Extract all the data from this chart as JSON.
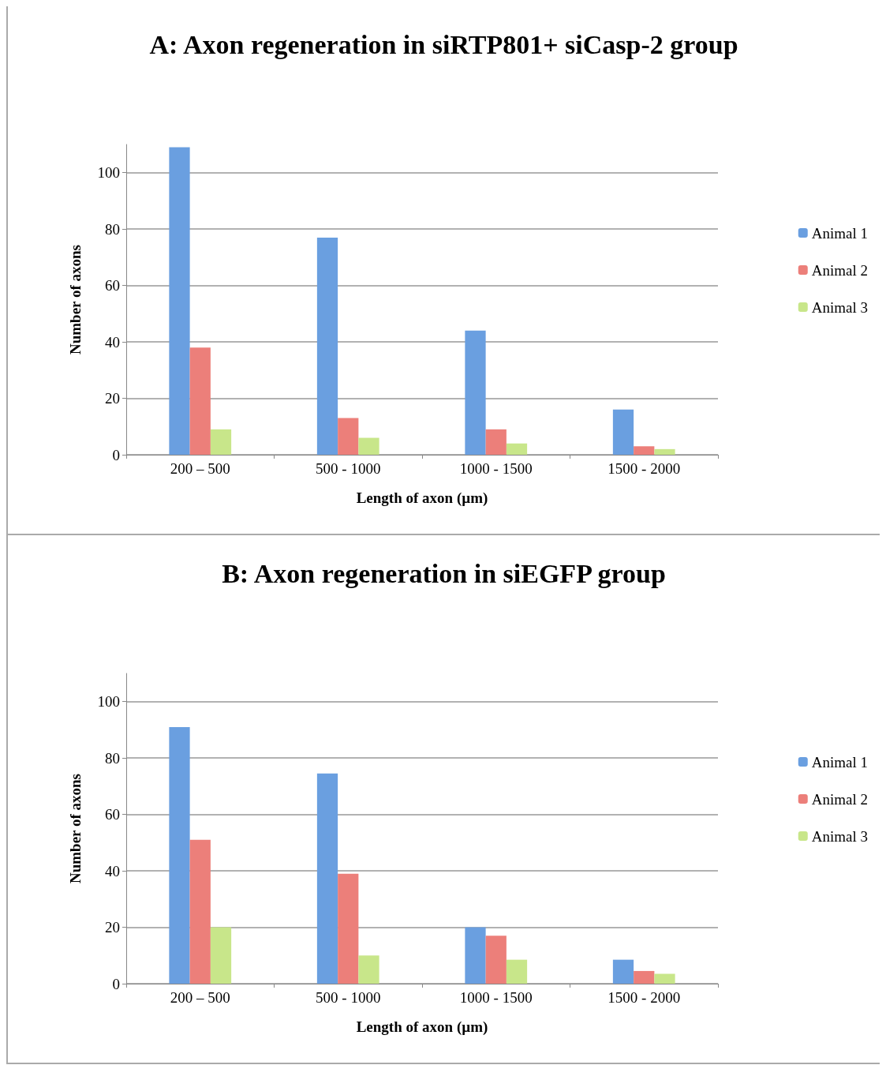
{
  "chart_data": [
    {
      "type": "bar",
      "title": "A: Axon regeneration in siRTP801+ siCasp-2 group",
      "xlabel": "Length of axon (µm)",
      "ylabel": "Number of axons",
      "categories": [
        "200 – 500",
        "500 - 1000",
        "1000 - 1500",
        "1500 - 2000"
      ],
      "series": [
        {
          "name": "Animal 1",
          "color": "#6a9fe0",
          "values": [
            109,
            77,
            44,
            16
          ]
        },
        {
          "name": "Animal 2",
          "color": "#ec7f7a",
          "values": [
            38,
            13,
            9,
            3
          ]
        },
        {
          "name": "Animal 3",
          "color": "#c8e68a",
          "values": [
            9,
            6,
            4,
            2
          ]
        }
      ],
      "ylim": [
        0,
        110
      ],
      "yticks": [
        0,
        20,
        40,
        60,
        80,
        100
      ],
      "grid": "y",
      "legend": "right"
    },
    {
      "type": "bar",
      "title": "B: Axon regeneration in siEGFP group",
      "xlabel": "Length of axon (µm)",
      "ylabel": "Number of axons",
      "categories": [
        "200 – 500",
        "500 - 1000",
        "1000 - 1500",
        "1500 - 2000"
      ],
      "series": [
        {
          "name": "Animal 1",
          "color": "#6a9fe0",
          "values": [
            91,
            74.5,
            20,
            8.5
          ]
        },
        {
          "name": "Animal 2",
          "color": "#ec7f7a",
          "values": [
            51,
            39,
            17,
            4.5
          ]
        },
        {
          "name": "Animal 3",
          "color": "#c8e68a",
          "values": [
            20,
            10,
            8.5,
            3.5
          ]
        }
      ],
      "ylim": [
        0,
        110
      ],
      "yticks": [
        0,
        20,
        40,
        60,
        80,
        100
      ],
      "grid": "y",
      "legend": "right"
    }
  ]
}
